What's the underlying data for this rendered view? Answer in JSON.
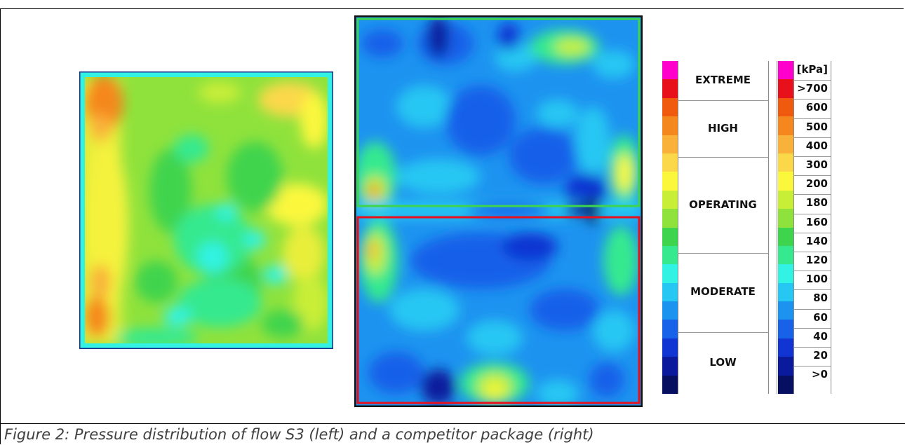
{
  "caption": "Figure 2: Pressure distribution of flow S3 (left) and a competitor package (right)",
  "legend": {
    "unit": "[kPa]",
    "categories": [
      "EXTREME",
      "HIGH",
      "OPERATING",
      "MODERATE",
      "LOW"
    ],
    "values": [
      ">700",
      "600",
      "500",
      "400",
      "300",
      "200",
      "180",
      "160",
      "140",
      "120",
      "100",
      "80",
      "60",
      "40",
      "20",
      ">0"
    ],
    "colors": [
      "#ff00cc",
      "#e8101a",
      "#f05a0f",
      "#f5871f",
      "#f9b13a",
      "#fbd84a",
      "#fbf73c",
      "#c9ee38",
      "#8fe23c",
      "#3fd44d",
      "#36e98f",
      "#32f3e3",
      "#27c7f3",
      "#1d93f0",
      "#1861e9",
      "#1135d2",
      "#0b1a9c",
      "#071060"
    ]
  }
}
